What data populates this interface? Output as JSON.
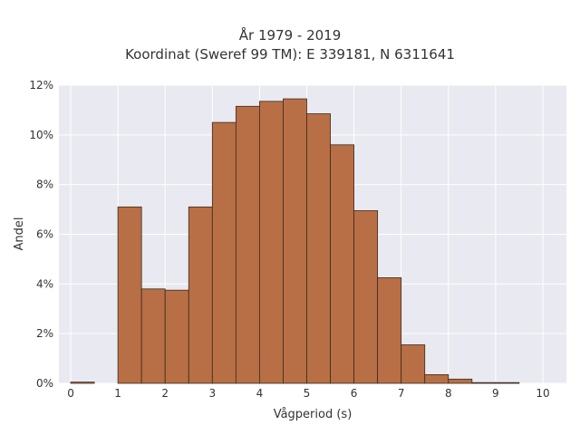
{
  "chart_data": {
    "type": "bar",
    "title": "År 1979 - 2019",
    "subtitle": "Koordinat (Sweref 99 TM): E 339181, N 6311641",
    "xlabel": "Vågperiod (s)",
    "ylabel": "Andel",
    "bin_width": 0.5,
    "bins_start": [
      0,
      1,
      1.5,
      2,
      2.5,
      3,
      3.5,
      4,
      4.5,
      5,
      5.5,
      6,
      6.5,
      7,
      7.5,
      8,
      8.5,
      9
    ],
    "values": [
      0.05,
      7.1,
      3.8,
      3.75,
      7.1,
      10.5,
      11.15,
      11.35,
      11.45,
      10.85,
      9.6,
      6.95,
      4.25,
      1.55,
      0.35,
      0.17,
      0.03,
      0.03
    ],
    "xlim": [
      -0.25,
      10.5
    ],
    "ylim": [
      0,
      12
    ],
    "xticks": [
      "0",
      "1",
      "2",
      "3",
      "4",
      "5",
      "6",
      "7",
      "8",
      "9",
      "10"
    ],
    "yticks": [
      "0%",
      "2%",
      "4%",
      "6%",
      "8%",
      "10%",
      "12%"
    ],
    "grid": true,
    "bar_color": "#b86f45",
    "edge_color": "#3b2a20",
    "background": "#e9e9f1"
  }
}
